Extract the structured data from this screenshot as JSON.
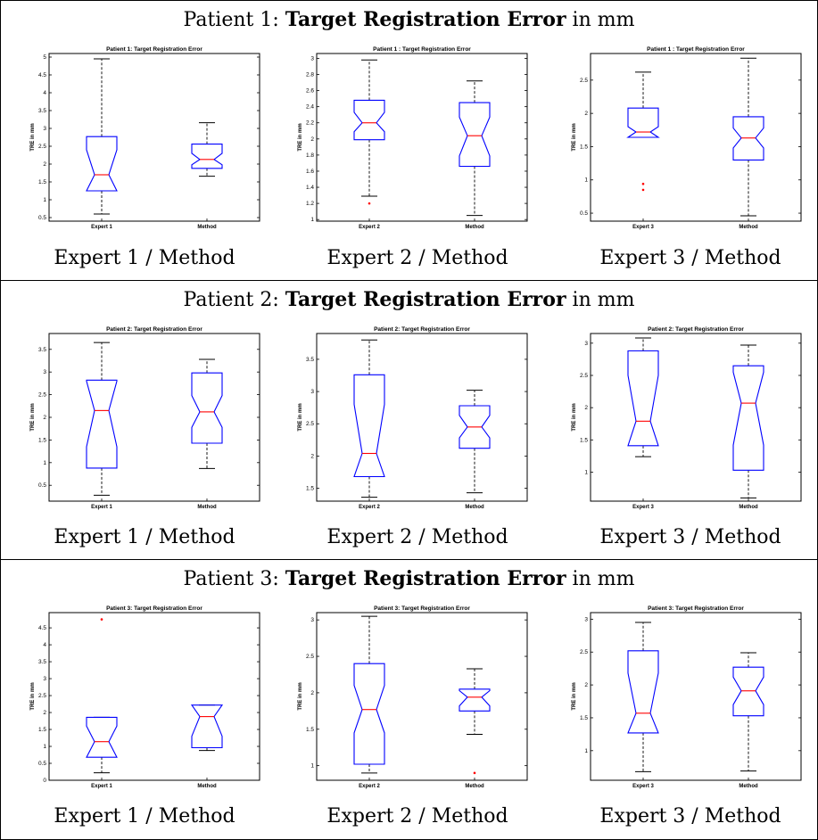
{
  "colors": {
    "box": "#0000ff",
    "median": "#ff0000",
    "outlier": "#ff0000",
    "whisker": "#000000"
  },
  "rows": [
    {
      "title_prefix": "Patient 1: ",
      "title_bold": "Target Registration Error",
      "title_suffix": " in mm"
    },
    {
      "title_prefix": "Patient 2: ",
      "title_bold": "Target Registration Error",
      "title_suffix": " in mm"
    },
    {
      "title_prefix": "Patient 3: ",
      "title_bold": "Target Registration Error",
      "title_suffix": " in mm"
    }
  ],
  "captions": [
    [
      "Expert 1 / Method",
      "Expert 2 / Method",
      "Expert 3 / Method"
    ],
    [
      "Expert 1 / Method",
      "Expert 2 / Method",
      "Expert 3 / Method"
    ],
    [
      "Expert 1 / Method",
      "Expert 2 / Method",
      "Expert 3 / Method"
    ]
  ],
  "chart_data": [
    {
      "type": "box",
      "title": "Patient 1: Target Registration Error",
      "ylabel": "TRE in mm",
      "ylim": [
        0.4,
        5.1
      ],
      "yticks": [
        "0.5",
        "1",
        "1.5",
        "2",
        "2.5",
        "3",
        "3.5",
        "4",
        "4.5",
        "5"
      ],
      "categories": [
        "Expert 1",
        "Method"
      ],
      "boxes": [
        {
          "min": 0.6,
          "q1": 1.25,
          "median": 1.7,
          "q3": 2.77,
          "max": 4.95,
          "notch_lo": 1.25,
          "notch_hi": 2.4,
          "outliers": []
        },
        {
          "min": 1.66,
          "q1": 1.88,
          "median": 2.13,
          "q3": 2.56,
          "max": 3.16,
          "notch_lo": 1.98,
          "notch_hi": 2.3,
          "outliers": []
        }
      ]
    },
    {
      "type": "box",
      "title": "Patient 1 : Target Registration Error",
      "ylabel": "TRE in mm",
      "ylim": [
        0.98,
        3.06
      ],
      "yticks": [
        "1",
        "1.2",
        "1.4",
        "1.6",
        "1.8",
        "2",
        "2.2",
        "2.4",
        "2.6",
        "2.8",
        "3"
      ],
      "categories": [
        "Expert 2",
        "Method"
      ],
      "boxes": [
        {
          "min": 1.29,
          "q1": 1.99,
          "median": 2.2,
          "q3": 2.48,
          "max": 2.98,
          "notch_lo": 2.09,
          "notch_hi": 2.33,
          "outliers": [
            1.2
          ]
        },
        {
          "min": 1.05,
          "q1": 1.66,
          "median": 2.04,
          "q3": 2.45,
          "max": 2.72,
          "notch_lo": 1.79,
          "notch_hi": 2.27,
          "outliers": []
        }
      ]
    },
    {
      "type": "box",
      "title": "Patient 1 : Target Registration Error",
      "ylabel": "TRE in mm",
      "ylim": [
        0.38,
        2.9
      ],
      "yticks": [
        "0.5",
        "1",
        "1.5",
        "2",
        "2.5"
      ],
      "categories": [
        "Expert 3",
        "Method"
      ],
      "boxes": [
        {
          "min": 1.64,
          "q1": 1.64,
          "median": 1.72,
          "q3": 2.08,
          "max": 2.62,
          "notch_lo": 1.64,
          "notch_hi": 1.8,
          "outliers": [
            0.85,
            0.94
          ]
        },
        {
          "min": 0.46,
          "q1": 1.3,
          "median": 1.63,
          "q3": 1.95,
          "max": 2.83,
          "notch_lo": 1.48,
          "notch_hi": 1.78,
          "outliers": []
        }
      ]
    },
    {
      "type": "box",
      "title": "Patient 2: Target Registration Error",
      "ylabel": "TRE in mm",
      "ylim": [
        0.15,
        3.85
      ],
      "yticks": [
        "0.5",
        "1",
        "1.5",
        "2",
        "2.5",
        "3",
        "3.5"
      ],
      "categories": [
        "Expert 1",
        "Method"
      ],
      "boxes": [
        {
          "min": 0.28,
          "q1": 0.88,
          "median": 2.15,
          "q3": 2.82,
          "max": 3.65,
          "notch_lo": 1.35,
          "notch_hi": 2.8,
          "outliers": []
        },
        {
          "min": 0.87,
          "q1": 1.43,
          "median": 2.12,
          "q3": 2.98,
          "max": 3.28,
          "notch_lo": 1.78,
          "notch_hi": 2.48,
          "outliers": []
        }
      ]
    },
    {
      "type": "box",
      "title": "Patient 2: Target Registration Error",
      "ylabel": "TRE in mm",
      "ylim": [
        1.3,
        3.9
      ],
      "yticks": [
        "1.5",
        "2",
        "2.5",
        "3",
        "3.5"
      ],
      "categories": [
        "Expert 2",
        "Method"
      ],
      "boxes": [
        {
          "min": 1.36,
          "q1": 1.68,
          "median": 2.04,
          "q3": 3.26,
          "max": 3.8,
          "notch_lo": 1.68,
          "notch_hi": 2.8,
          "outliers": []
        },
        {
          "min": 1.43,
          "q1": 2.12,
          "median": 2.45,
          "q3": 2.78,
          "max": 3.02,
          "notch_lo": 2.28,
          "notch_hi": 2.63,
          "outliers": []
        }
      ]
    },
    {
      "type": "box",
      "title": "Patient 2: Target Registration Error",
      "ylabel": "TRE in mm",
      "ylim": [
        0.55,
        3.15
      ],
      "yticks": [
        "1",
        "1.5",
        "2",
        "2.5",
        "3"
      ],
      "categories": [
        "Expert 3",
        "Method"
      ],
      "boxes": [
        {
          "min": 1.24,
          "q1": 1.41,
          "median": 1.79,
          "q3": 2.88,
          "max": 3.08,
          "notch_lo": 1.41,
          "notch_hi": 2.5,
          "outliers": []
        },
        {
          "min": 0.6,
          "q1": 1.03,
          "median": 2.07,
          "q3": 2.65,
          "max": 2.97,
          "notch_lo": 1.42,
          "notch_hi": 2.55,
          "outliers": []
        }
      ]
    },
    {
      "type": "box",
      "title": "Patient 3: Target Registration Error",
      "ylabel": "TRE in mm",
      "ylim": [
        0,
        4.95
      ],
      "yticks": [
        "0",
        "0.5",
        "1",
        "1.5",
        "2",
        "2.5",
        "3",
        "3.5",
        "4",
        "4.5"
      ],
      "categories": [
        "Expert 1",
        "Method"
      ],
      "boxes": [
        {
          "min": 0.22,
          "q1": 0.68,
          "median": 1.14,
          "q3": 1.86,
          "max": 1.86,
          "notch_lo": 0.68,
          "notch_hi": 1.6,
          "outliers": [
            4.75
          ]
        },
        {
          "min": 0.88,
          "q1": 0.96,
          "median": 1.88,
          "q3": 2.22,
          "max": 2.22,
          "notch_lo": 1.3,
          "notch_hi": 2.22,
          "outliers": []
        }
      ]
    },
    {
      "type": "box",
      "title": "Patient 3: Target Registration Error",
      "ylabel": "TRE in mm",
      "ylim": [
        0.8,
        3.1
      ],
      "yticks": [
        "1",
        "1.5",
        "2",
        "2.5",
        "3"
      ],
      "categories": [
        "Expert 2",
        "Method"
      ],
      "boxes": [
        {
          "min": 0.9,
          "q1": 1.02,
          "median": 1.77,
          "q3": 2.4,
          "max": 3.05,
          "notch_lo": 1.45,
          "notch_hi": 2.1,
          "outliers": []
        },
        {
          "min": 1.43,
          "q1": 1.75,
          "median": 1.94,
          "q3": 2.05,
          "max": 2.33,
          "notch_lo": 1.82,
          "notch_hi": 2.03,
          "outliers": [
            0.9
          ]
        }
      ]
    },
    {
      "type": "box",
      "title": "Patient 3: Target Registration Error",
      "ylabel": "TRE in mm",
      "ylim": [
        0.55,
        3.1
      ],
      "yticks": [
        "1",
        "1.5",
        "2",
        "2.5",
        "3"
      ],
      "categories": [
        "Expert 3",
        "Method"
      ],
      "boxes": [
        {
          "min": 0.68,
          "q1": 1.27,
          "median": 1.57,
          "q3": 2.52,
          "max": 2.95,
          "notch_lo": 1.27,
          "notch_hi": 2.18,
          "outliers": []
        },
        {
          "min": 0.69,
          "q1": 1.53,
          "median": 1.91,
          "q3": 2.27,
          "max": 2.49,
          "notch_lo": 1.7,
          "notch_hi": 2.12,
          "outliers": []
        }
      ]
    }
  ]
}
